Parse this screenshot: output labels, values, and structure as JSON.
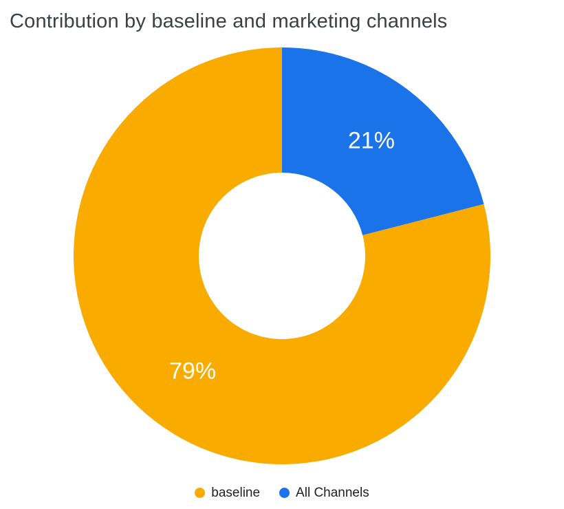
{
  "chart_data": {
    "type": "pie",
    "subtype": "donut",
    "title": "Contribution by baseline and marketing channels",
    "direction": "counter-clockwise",
    "start_angle_deg": 0,
    "legend_position": "bottom",
    "slice_label_color": "#FFFFFF",
    "slices": [
      {
        "name": "baseline",
        "value": 79,
        "label": "79%",
        "color": "#F9AB00"
      },
      {
        "name": "All Channels",
        "value": 21,
        "label": "21%",
        "color": "#1A73E8"
      }
    ]
  },
  "styles": {
    "title_color": "#3C4043",
    "background": "#FFFFFF",
    "legend_text_color": "#202124"
  }
}
